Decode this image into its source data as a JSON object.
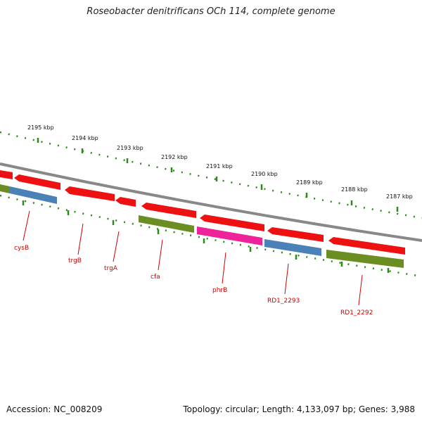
{
  "title": "Roseobacter denitrificans OCh 114, complete genome",
  "footer": {
    "accession": "Accession: NC_008209",
    "topology": "Topology: circular; Length: 4,133,097 bp; Genes: 3,988"
  },
  "colors": {
    "backbone": "#888888",
    "ticks": "#2a8a1a",
    "red": "#ee1111",
    "blue": "#4a82b8",
    "green": "#6b8e23",
    "pink": "#ee2299",
    "label": "#d00000"
  },
  "scale": {
    "unit": "kbp",
    "labels": [
      "2195 kbp",
      "2194 kbp",
      "2193 kbp",
      "2192 kbp",
      "2191 kbp",
      "2190 kbp",
      "2189 kbp",
      "2188 kbp",
      "2187 kbp"
    ]
  },
  "genes": [
    {
      "label": "",
      "track": "forward",
      "color": "red"
    },
    {
      "label": "",
      "track": "forward",
      "color": "red"
    },
    {
      "label": "",
      "track": "reverse",
      "color": "green"
    },
    {
      "label": "cysB",
      "track": "reverse",
      "color": "blue"
    },
    {
      "label": "trgB",
      "track": "forward",
      "color": "red"
    },
    {
      "label": "trgA",
      "track": "forward",
      "color": "red"
    },
    {
      "label": "cfa",
      "track": "reverse",
      "color": "green"
    },
    {
      "label": "",
      "track": "forward",
      "color": "red"
    },
    {
      "label": "phrB",
      "track": "reverse",
      "color": "pink"
    },
    {
      "label": "",
      "track": "forward",
      "color": "red"
    },
    {
      "label": "RD1_2293",
      "track": "reverse",
      "color": "blue"
    },
    {
      "label": "",
      "track": "forward",
      "color": "red"
    },
    {
      "label": "RD1_2292",
      "track": "reverse",
      "color": "green"
    }
  ]
}
